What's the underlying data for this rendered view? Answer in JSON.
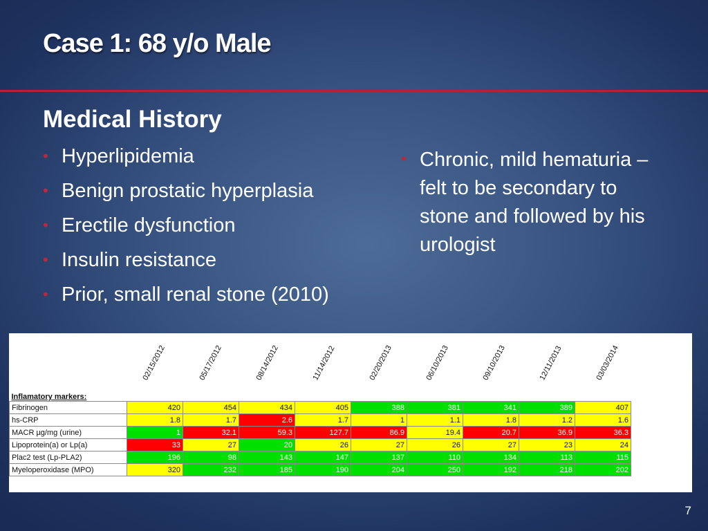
{
  "slide": {
    "title": "Case 1: 68 y/o Male",
    "heading": "Medical History",
    "left_bullets": [
      "Hyperlipidemia",
      "Benign prostatic hyperplasia",
      "Erectile dysfunction",
      "Insulin resistance",
      "Prior, small renal stone (2010)"
    ],
    "right_bullets": [
      "Chronic, mild hematuria – felt to be secondary to stone and followed by his urologist"
    ],
    "page_number": "7",
    "colors": {
      "accent_rule": "#b5213a",
      "bullet": "#c0253e",
      "yellow": "#ffff00",
      "green": "#00e000",
      "red": "#ff0000"
    }
  },
  "lab_table": {
    "dates": [
      "02/15/2012",
      "05/17/2012",
      "08/14/2012",
      "11/14/2012",
      "02/20/2013",
      "06/10/2013",
      "09/10/2013",
      "12/11/2013",
      "03/03/2014"
    ],
    "section_label": "Inflamatory markers:",
    "rows": [
      {
        "label": "Fibrinogen",
        "values": [
          "420",
          "454",
          "434",
          "405",
          "388",
          "381",
          "341",
          "389",
          "407"
        ],
        "status": [
          "y",
          "y",
          "y",
          "y",
          "g",
          "g",
          "g",
          "g",
          "y"
        ]
      },
      {
        "label": "hs-CRP",
        "values": [
          "1.8",
          "1.7",
          "2.6",
          "1.7",
          "1",
          "1.1",
          "1.8",
          "1.2",
          "1.6"
        ],
        "status": [
          "y",
          "y",
          "r",
          "y",
          "y",
          "y",
          "y",
          "y",
          "y"
        ]
      },
      {
        "label": "MACR µg/mg (urine)",
        "values": [
          "1",
          "32.1",
          "59.3",
          "127.7",
          "86.9",
          "19.4",
          "20.7",
          "36.9",
          "36.3"
        ],
        "status": [
          "g",
          "r",
          "r",
          "r",
          "r",
          "y",
          "r",
          "r",
          "r"
        ]
      },
      {
        "label": "Lipoprotein(a) or Lp(a)",
        "values": [
          "33",
          "27",
          "20",
          "26",
          "27",
          "26",
          "27",
          "23",
          "24"
        ],
        "status": [
          "r",
          "y",
          "g",
          "y",
          "y",
          "y",
          "y",
          "y",
          "y"
        ]
      },
      {
        "label": "Plac2 test (Lp-PLA2)",
        "values": [
          "196",
          "98",
          "143",
          "147",
          "137",
          "110",
          "134",
          "113",
          "115"
        ],
        "status": [
          "g",
          "g",
          "g",
          "g",
          "g",
          "g",
          "g",
          "g",
          "g"
        ]
      },
      {
        "label": "Myeloperoxidase (MPO)",
        "values": [
          "320",
          "232",
          "185",
          "190",
          "204",
          "250",
          "192",
          "218",
          "202"
        ],
        "status": [
          "y",
          "g",
          "g",
          "g",
          "g",
          "g",
          "g",
          "g",
          "g"
        ]
      }
    ]
  }
}
